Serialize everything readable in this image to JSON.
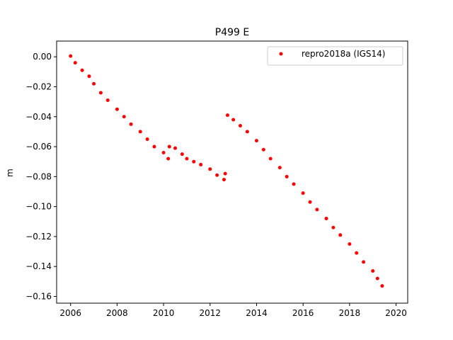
{
  "chart_data": {
    "type": "scatter",
    "title": "P499 E",
    "xlabel": "",
    "ylabel": "m",
    "xlim": [
      2005.4,
      2020.5
    ],
    "ylim": [
      -0.1645,
      0.0105
    ],
    "xticks": [
      2006,
      2008,
      2010,
      2012,
      2014,
      2016,
      2018,
      2020
    ],
    "xtick_labels": [
      "2006",
      "2008",
      "2010",
      "2012",
      "2014",
      "2016",
      "2018",
      "2020"
    ],
    "yticks": [
      0.0,
      -0.02,
      -0.04,
      -0.06,
      -0.08,
      -0.1,
      -0.12,
      -0.14,
      -0.16
    ],
    "ytick_labels": [
      "0.00",
      "−0.02",
      "−0.04",
      "−0.06",
      "−0.08",
      "−0.10",
      "−0.12",
      "−0.14",
      "−0.16"
    ],
    "grid": false,
    "legend_position": "top-right",
    "series": [
      {
        "name": "repro2018a (IGS14)",
        "color": "#ff0000",
        "marker": "circle",
        "x": [
          2006.0,
          2006.2,
          2006.5,
          2006.8,
          2007.0,
          2007.3,
          2007.6,
          2008.0,
          2008.3,
          2008.6,
          2009.0,
          2009.3,
          2009.6,
          2010.0,
          2010.2,
          2010.25,
          2010.5,
          2010.8,
          2011.0,
          2011.3,
          2011.6,
          2012.0,
          2012.3,
          2012.6,
          2012.65,
          2012.75,
          2013.0,
          2013.3,
          2013.6,
          2014.0,
          2014.3,
          2014.6,
          2015.0,
          2015.3,
          2015.6,
          2016.0,
          2016.3,
          2016.6,
          2017.0,
          2017.3,
          2017.6,
          2018.0,
          2018.3,
          2018.6,
          2019.0,
          2019.2,
          2019.4
        ],
        "y": [
          0.0005,
          -0.004,
          -0.009,
          -0.013,
          -0.018,
          -0.024,
          -0.029,
          -0.035,
          -0.04,
          -0.045,
          -0.05,
          -0.055,
          -0.06,
          -0.064,
          -0.068,
          -0.06,
          -0.061,
          -0.065,
          -0.068,
          -0.07,
          -0.072,
          -0.075,
          -0.079,
          -0.082,
          -0.078,
          -0.039,
          -0.042,
          -0.046,
          -0.05,
          -0.056,
          -0.062,
          -0.068,
          -0.074,
          -0.08,
          -0.085,
          -0.091,
          -0.097,
          -0.102,
          -0.108,
          -0.114,
          -0.119,
          -0.125,
          -0.131,
          -0.137,
          -0.143,
          -0.148,
          -0.153
        ]
      }
    ]
  }
}
